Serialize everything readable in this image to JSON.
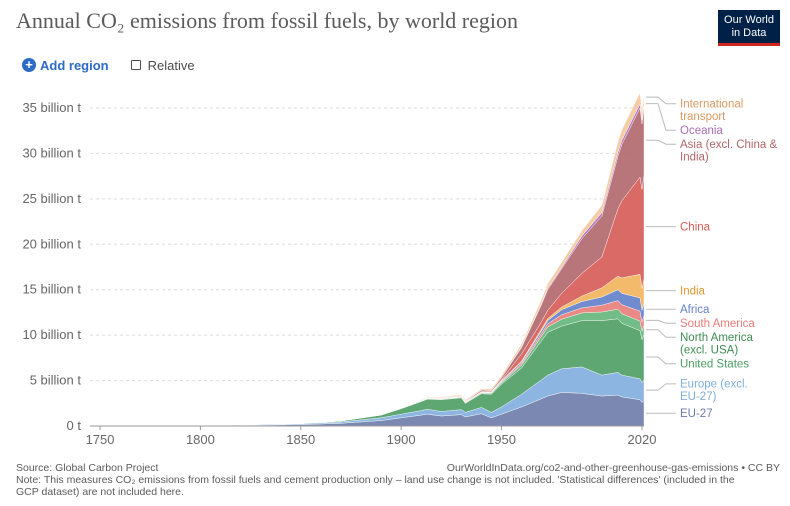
{
  "header": {
    "title": "Annual CO₂ emissions from fossil fuels, by world region",
    "logo_line1": "Our World",
    "logo_line2": "in Data"
  },
  "controls": {
    "add_region_label": "Add region",
    "relative_label": "Relative",
    "relative_checked": false
  },
  "footer": {
    "source": "Source: Global Carbon Project",
    "url": "OurWorldInData.org/co2-and-other-greenhouse-gas-emissions • CC BY",
    "note": "Note: This measures CO₂ emissions from fossil fuels and cement production only – land use change is not included. 'Statistical differences' (included in the GCP dataset) are not included here."
  },
  "chart_data": {
    "type": "area",
    "stacked": true,
    "x_ticks": [
      1750,
      1800,
      1850,
      1900,
      1950,
      2020
    ],
    "y_ticks": [
      {
        "value": 0,
        "label": "0 t"
      },
      {
        "value": 5,
        "label": "5 billion t"
      },
      {
        "value": 10,
        "label": "10 billion t"
      },
      {
        "value": 15,
        "label": "15 billion t"
      },
      {
        "value": 20,
        "label": "20 billion t"
      },
      {
        "value": 25,
        "label": "25 billion t"
      },
      {
        "value": 30,
        "label": "30 billion t"
      },
      {
        "value": 35,
        "label": "35 billion t"
      }
    ],
    "xlim": [
      1745,
      2021
    ],
    "ylim": [
      0,
      35
    ],
    "unit": "billion t",
    "grid": true,
    "legend_placement": "right, labels at series ends",
    "x": [
      1750,
      1800,
      1850,
      1870,
      1890,
      1900,
      1910,
      1913,
      1920,
      1930,
      1932,
      1940,
      1945,
      1950,
      1960,
      1970,
      1973,
      1980,
      1990,
      2000,
      2008,
      2010,
      2019,
      2020,
      2021
    ],
    "series": [
      {
        "name": "EU-27",
        "color": "#6d7caa",
        "label_lines": [
          "EU-27"
        ],
        "values": [
          0.005,
          0.02,
          0.15,
          0.3,
          0.6,
          0.9,
          1.2,
          1.3,
          1.1,
          1.25,
          1.0,
          1.35,
          0.9,
          1.3,
          2.1,
          3.0,
          3.3,
          3.7,
          3.6,
          3.3,
          3.4,
          3.2,
          2.9,
          2.6,
          2.8
        ]
      },
      {
        "name": "Europe (excl. EU-27)",
        "color": "#7faede",
        "label_lines": [
          "Europe (excl.",
          "EU-27)"
        ],
        "values": [
          0.0,
          0.04,
          0.1,
          0.15,
          0.3,
          0.4,
          0.5,
          0.55,
          0.5,
          0.55,
          0.5,
          0.7,
          0.6,
          0.8,
          1.4,
          2.1,
          2.3,
          2.6,
          2.9,
          2.3,
          2.5,
          2.4,
          2.3,
          2.2,
          2.3
        ]
      },
      {
        "name": "United States",
        "color": "#4c9d64",
        "label_lines": [
          "United States"
        ],
        "values": [
          0.0,
          0.002,
          0.02,
          0.1,
          0.3,
          0.6,
          1.0,
          1.1,
          1.3,
          1.3,
          1.0,
          1.5,
          2.0,
          2.5,
          2.9,
          4.3,
          4.7,
          4.7,
          5.1,
          6.0,
          5.9,
          5.7,
          5.3,
          4.7,
          5.0
        ]
      },
      {
        "name": "North America (excl. USA)",
        "color": "#62b57a",
        "label_lines": [
          "North America",
          "(excl. USA)"
        ],
        "values": [
          0.0,
          0.0,
          0.0,
          0.01,
          0.02,
          0.03,
          0.05,
          0.06,
          0.06,
          0.07,
          0.06,
          0.09,
          0.1,
          0.15,
          0.3,
          0.5,
          0.6,
          0.75,
          0.85,
          0.95,
          1.05,
          1.05,
          1.05,
          0.95,
          1.0
        ]
      },
      {
        "name": "South America",
        "color": "#e87d7a",
        "label_lines": [
          "South America"
        ],
        "values": [
          0.0,
          0.0,
          0.0,
          0.002,
          0.005,
          0.01,
          0.02,
          0.02,
          0.02,
          0.03,
          0.03,
          0.04,
          0.05,
          0.08,
          0.18,
          0.3,
          0.35,
          0.5,
          0.55,
          0.75,
          0.95,
          1.0,
          1.1,
          1.0,
          1.05
        ]
      },
      {
        "name": "Africa",
        "color": "#6280c9",
        "label_lines": [
          "Africa"
        ],
        "values": [
          0.0,
          0.0,
          0.0,
          0.002,
          0.005,
          0.01,
          0.02,
          0.02,
          0.02,
          0.03,
          0.03,
          0.04,
          0.05,
          0.1,
          0.15,
          0.3,
          0.35,
          0.55,
          0.7,
          0.9,
          1.2,
          1.25,
          1.45,
          1.3,
          1.4
        ]
      },
      {
        "name": "India",
        "color": "#f2b35c",
        "label_lines": [
          "India"
        ],
        "values": [
          0.0,
          0.0,
          0.0,
          0.002,
          0.005,
          0.02,
          0.02,
          0.03,
          0.03,
          0.03,
          0.03,
          0.04,
          0.05,
          0.07,
          0.12,
          0.2,
          0.22,
          0.3,
          0.6,
          1.0,
          1.5,
          1.7,
          2.6,
          2.4,
          2.7
        ]
      },
      {
        "name": "China",
        "color": "#d65a55",
        "label_lines": [
          "China"
        ],
        "values": [
          0.0,
          0.0,
          0.0,
          0.0,
          0.0,
          0.0,
          0.01,
          0.01,
          0.01,
          0.02,
          0.02,
          0.03,
          0.04,
          0.08,
          0.8,
          0.8,
          0.9,
          1.5,
          2.5,
          3.4,
          7.4,
          8.5,
          10.7,
          10.9,
          11.4
        ]
      },
      {
        "name": "Asia (excl. China & India)",
        "color": "#b0666b",
        "label_lines": [
          "Asia (excl. China &",
          "India)"
        ],
        "values": [
          0.0,
          0.0,
          0.0,
          0.002,
          0.01,
          0.02,
          0.03,
          0.04,
          0.05,
          0.07,
          0.07,
          0.15,
          0.12,
          0.25,
          0.7,
          1.9,
          2.3,
          2.7,
          3.8,
          4.5,
          5.8,
          6.2,
          7.6,
          7.2,
          7.6
        ]
      },
      {
        "name": "Oceania",
        "color": "#a76cb5",
        "label_lines": [
          "Oceania"
        ],
        "values": [
          0.0,
          0.0,
          0.0,
          0.002,
          0.005,
          0.01,
          0.02,
          0.02,
          0.02,
          0.02,
          0.02,
          0.03,
          0.03,
          0.04,
          0.07,
          0.12,
          0.14,
          0.18,
          0.3,
          0.38,
          0.44,
          0.45,
          0.45,
          0.43,
          0.45
        ]
      },
      {
        "name": "International transport",
        "color": "#f4c69c",
        "label_lines": [
          "International",
          "transport"
        ],
        "values": [
          0.0,
          0.0,
          0.0,
          0.005,
          0.02,
          0.04,
          0.06,
          0.07,
          0.08,
          0.1,
          0.1,
          0.13,
          0.15,
          0.2,
          0.3,
          0.45,
          0.5,
          0.55,
          0.6,
          0.8,
          1.15,
          1.15,
          1.25,
          0.9,
          1.0
        ]
      }
    ]
  }
}
